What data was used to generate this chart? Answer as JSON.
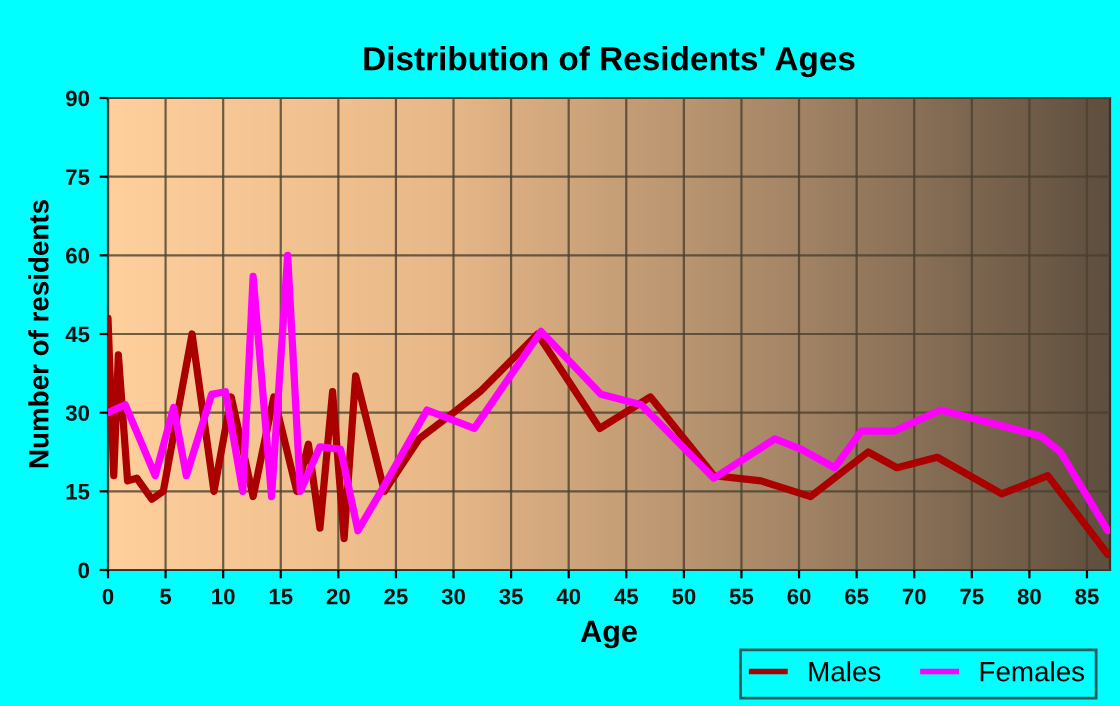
{
  "chart_data": {
    "type": "line",
    "title": "Distribution of Residents' Ages",
    "xlabel": "Age",
    "ylabel": "Number of residents",
    "xlim": [
      0,
      87
    ],
    "xticks": [
      0,
      5,
      10,
      15,
      20,
      25,
      30,
      35,
      40,
      45,
      50,
      55,
      60,
      65,
      70,
      75,
      80,
      85
    ],
    "ylim": [
      0,
      90
    ],
    "yticks": [
      0,
      15,
      30,
      45,
      60,
      75,
      90
    ],
    "grid": true,
    "legend": "bottom right",
    "marker": "none",
    "line_style": "solid",
    "series": [
      {
        "name": "Males",
        "color": "#aa0000",
        "x": [
          0,
          0.5,
          0.9,
          1.7,
          2.5,
          3.8,
          4.8,
          7.3,
          9.2,
          10.7,
          12.6,
          14.4,
          16.4,
          17.4,
          18.4,
          19.5,
          20.5,
          21.5,
          24,
          27,
          30,
          32.3,
          37.3,
          42.7,
          47.1,
          52.6,
          56.7,
          61,
          66,
          68.5,
          72,
          77.6,
          81.6,
          86.8
        ],
        "values": [
          48,
          18,
          41,
          17,
          17.5,
          13.5,
          15,
          45,
          15,
          33,
          14,
          33,
          15,
          24,
          8,
          34,
          6,
          37,
          15,
          25,
          30,
          34,
          45,
          27,
          33,
          18,
          17,
          14,
          22.5,
          19.5,
          21.5,
          14.5,
          18,
          3
        ]
      },
      {
        "name": "Females",
        "color": "#ff00ff",
        "x": [
          0,
          1.5,
          4.1,
          5.7,
          6.8,
          9,
          10.2,
          11.7,
          12.6,
          14.2,
          15.6,
          16.7,
          18.4,
          20.2,
          21.7,
          23.7,
          27.7,
          31.8,
          37.6,
          42.8,
          46.3,
          52.6,
          57.9,
          60.2,
          63.1,
          65.4,
          68.3,
          72.3,
          77.6,
          81,
          82.7,
          86.8
        ],
        "values": [
          30,
          31.5,
          18,
          31,
          18,
          33.5,
          34,
          15,
          56,
          14,
          60,
          15,
          23.5,
          23,
          7.5,
          15,
          30.5,
          27,
          45.5,
          33.5,
          31.5,
          17.5,
          25,
          23,
          19.5,
          26.5,
          26.5,
          30.5,
          27.5,
          25.5,
          22.5,
          7.5
        ]
      }
    ]
  }
}
